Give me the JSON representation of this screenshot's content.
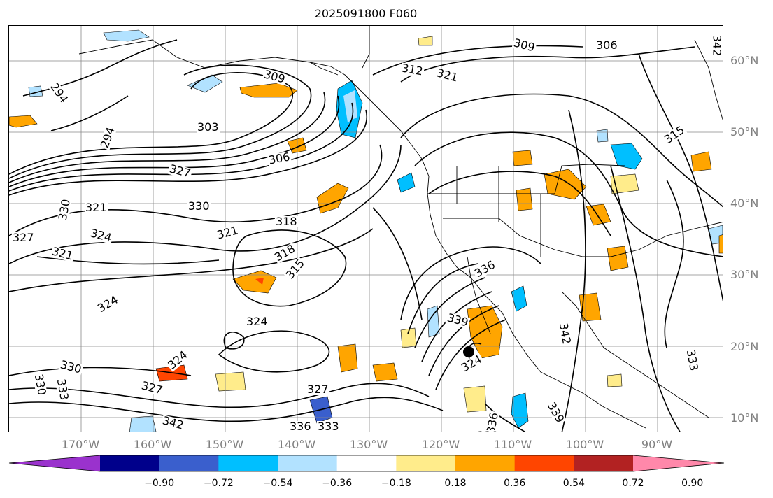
{
  "title": "2025091800 F060",
  "map": {
    "lat_labels": [
      "60°N",
      "50°N",
      "40°N",
      "30°N",
      "20°N",
      "10°N"
    ],
    "lon_labels": [
      "170°W",
      "160°W",
      "150°W",
      "140°W",
      "130°W",
      "120°W",
      "110°W",
      "100°W",
      "90°W"
    ],
    "contour_labels": [
      "294",
      "294",
      "303",
      "306",
      "309",
      "309",
      "306",
      "312",
      "321",
      "315",
      "327",
      "330",
      "330",
      "321",
      "327",
      "324",
      "321",
      "318",
      "321",
      "318",
      "315",
      "336",
      "339",
      "342",
      "324",
      "324",
      "324",
      "330",
      "327",
      "333",
      "330",
      "327",
      "324",
      "342",
      "336",
      "333",
      "336",
      "330",
      "339",
      "333",
      "342"
    ],
    "storm_marker": "filled-circle"
  },
  "colorbar": {
    "ticks": [
      "−0.90",
      "−0.72",
      "−0.54",
      "−0.36",
      "−0.18",
      "0.18",
      "0.36",
      "0.54",
      "0.72",
      "0.90"
    ],
    "colors": [
      "#9a32cd",
      "#00008b",
      "#3a5fcd",
      "#00bfff",
      "#b2e2ff",
      "#ffffff",
      "#ffec8b",
      "#ffa500",
      "#ff4500",
      "#b22222",
      "#ff88aa"
    ]
  }
}
